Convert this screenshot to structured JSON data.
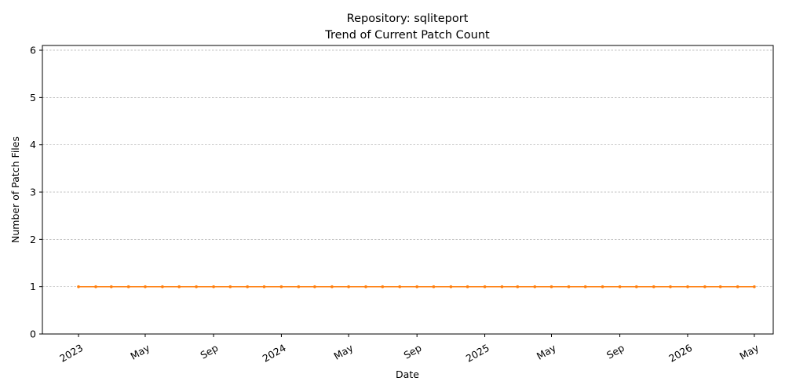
{
  "chart_data": {
    "type": "line",
    "title": "Repository: sqliteport",
    "subtitle": "Trend of Current Patch Count",
    "xlabel": "Date",
    "ylabel": "Number of Patch Files",
    "ylim": [
      0,
      6.1
    ],
    "xlim": [
      "2022-10-28",
      "2026-06-04"
    ],
    "y_ticks": [
      0,
      1,
      2,
      3,
      4,
      5,
      6
    ],
    "x_ticks": [
      {
        "date": "2023-01-01",
        "label": "2023"
      },
      {
        "date": "2023-05-01",
        "label": "May"
      },
      {
        "date": "2023-09-01",
        "label": "Sep"
      },
      {
        "date": "2024-01-01",
        "label": "2024"
      },
      {
        "date": "2024-05-01",
        "label": "May"
      },
      {
        "date": "2024-09-01",
        "label": "Sep"
      },
      {
        "date": "2025-01-01",
        "label": "2025"
      },
      {
        "date": "2025-05-01",
        "label": "May"
      },
      {
        "date": "2025-09-01",
        "label": "Sep"
      },
      {
        "date": "2026-01-01",
        "label": "2026"
      },
      {
        "date": "2026-05-01",
        "label": "May"
      }
    ],
    "grid": "y-dashed",
    "series": [
      {
        "color": "#ff7f0e",
        "x": [
          "2023-01-01",
          "2023-02-01",
          "2023-03-01",
          "2023-04-01",
          "2023-05-01",
          "2023-06-01",
          "2023-07-01",
          "2023-08-01",
          "2023-09-01",
          "2023-10-01",
          "2023-11-01",
          "2023-12-01",
          "2024-01-01",
          "2024-02-01",
          "2024-03-01",
          "2024-04-01",
          "2024-05-01",
          "2024-06-01",
          "2024-07-01",
          "2024-08-01",
          "2024-09-01",
          "2024-10-01",
          "2024-11-01",
          "2024-12-01",
          "2025-01-01",
          "2025-02-01",
          "2025-03-01",
          "2025-04-01",
          "2025-05-01",
          "2025-06-01",
          "2025-07-01",
          "2025-08-01",
          "2025-09-01",
          "2025-10-01",
          "2025-11-01",
          "2025-12-01",
          "2026-01-01",
          "2026-02-01",
          "2026-03-01",
          "2026-04-01",
          "2026-05-01"
        ],
        "values": [
          1,
          1,
          1,
          1,
          1,
          1,
          1,
          1,
          1,
          1,
          1,
          1,
          1,
          1,
          1,
          1,
          1,
          1,
          1,
          1,
          1,
          1,
          1,
          1,
          1,
          1,
          1,
          1,
          1,
          1,
          1,
          1,
          1,
          1,
          1,
          1,
          1,
          1,
          1,
          1,
          1
        ]
      }
    ]
  }
}
